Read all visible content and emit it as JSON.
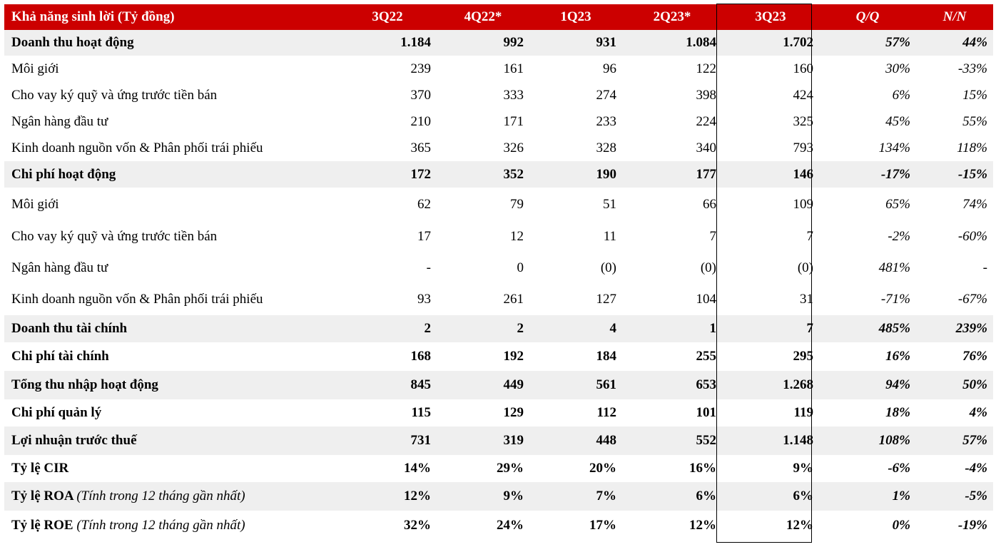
{
  "table": {
    "header": [
      "Khả năng sinh lời (Tỷ đồng)",
      "3Q22",
      "4Q22*",
      "1Q23",
      "2Q23*",
      "3Q23",
      "Q/Q",
      "N/N"
    ],
    "rows": [
      {
        "label": "Doanh thu hoạt động",
        "values": [
          "1.184",
          "992",
          "931",
          "1.084",
          "1.702"
        ],
        "qq": "57%",
        "nn": "44%"
      },
      {
        "label": "Môi giới",
        "values": [
          "239",
          "161",
          "96",
          "122",
          "160"
        ],
        "qq": "30%",
        "nn": "-33%"
      },
      {
        "label": "Cho vay ký quỹ và ứng trước tiền bán",
        "values": [
          "370",
          "333",
          "274",
          "398",
          "424"
        ],
        "qq": "6%",
        "nn": "15%"
      },
      {
        "label": "Ngân hàng đầu tư",
        "values": [
          "210",
          "171",
          "233",
          "224",
          "325"
        ],
        "qq": "45%",
        "nn": "55%"
      },
      {
        "label": "Kinh doanh nguồn vốn & Phân phối trái phiếu",
        "values": [
          "365",
          "326",
          "328",
          "340",
          "793"
        ],
        "qq": "134%",
        "nn": "118%"
      },
      {
        "label": "Chi phí hoạt động",
        "values": [
          "172",
          "352",
          "190",
          "177",
          "146"
        ],
        "qq": "-17%",
        "nn": "-15%"
      },
      {
        "label": "Môi giới",
        "values": [
          "62",
          "79",
          "51",
          "66",
          "109"
        ],
        "qq": "65%",
        "nn": "74%"
      },
      {
        "label": "Cho vay ký quỹ và ứng trước tiền bán",
        "values": [
          "17",
          "12",
          "11",
          "7",
          "7"
        ],
        "qq": "-2%",
        "nn": "-60%"
      },
      {
        "label": "Ngân hàng đầu tư",
        "values": [
          "-",
          "0",
          "(0)",
          "(0)",
          "(0)"
        ],
        "qq": "481%",
        "nn": "-"
      },
      {
        "label": "Kinh doanh nguồn vốn & Phân phối trái phiếu",
        "values": [
          "93",
          "261",
          "127",
          "104",
          "31"
        ],
        "qq": "-71%",
        "nn": "-67%"
      },
      {
        "label": "Doanh thu tài chính",
        "values": [
          "2",
          "2",
          "4",
          "1",
          "7"
        ],
        "qq": "485%",
        "nn": "239%"
      },
      {
        "label": "Chi phí tài chính",
        "values": [
          "168",
          "192",
          "184",
          "255",
          "295"
        ],
        "qq": "16%",
        "nn": "76%"
      },
      {
        "label": "Tổng thu nhập hoạt động",
        "values": [
          "845",
          "449",
          "561",
          "653",
          "1.268"
        ],
        "qq": "94%",
        "nn": "50%"
      },
      {
        "label": "Chi phí quản lý",
        "values": [
          "115",
          "129",
          "112",
          "101",
          "119"
        ],
        "qq": "18%",
        "nn": "4%"
      },
      {
        "label": "Lợi nhuận trước thuế",
        "values": [
          "731",
          "319",
          "448",
          "552",
          "1.148"
        ],
        "qq": "108%",
        "nn": "57%"
      },
      {
        "label": "Tỷ lệ CIR",
        "values": [
          "14%",
          "29%",
          "20%",
          "16%",
          "9%"
        ],
        "qq": "-6%",
        "nn": "-4%"
      },
      {
        "label": "Tỷ lệ ROA",
        "note": "(Tính trong 12 tháng gần nhất)",
        "values": [
          "12%",
          "9%",
          "7%",
          "6%",
          "6%"
        ],
        "qq": "1%",
        "nn": "-5%"
      },
      {
        "label": "Tỷ lệ ROE",
        "note": "(Tính trong 12 tháng gần nhất)",
        "values": [
          "32%",
          "24%",
          "17%",
          "12%",
          "12%"
        ],
        "qq": "0%",
        "nn": "-19%"
      }
    ]
  }
}
